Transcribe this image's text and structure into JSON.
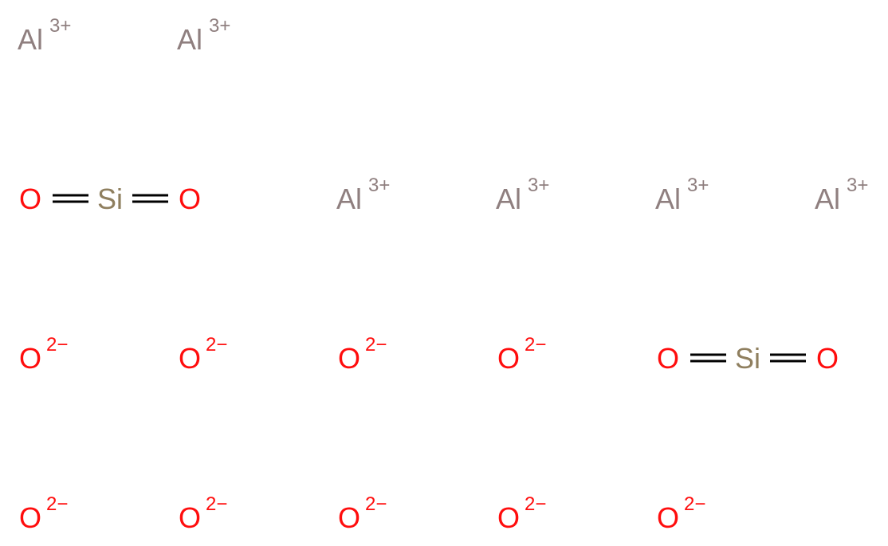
{
  "colors": {
    "aluminium": "#8F7F7F",
    "oxygen": "#FF0D0D",
    "silicon": "#8F7F5F",
    "bond": "#000000"
  },
  "species": {
    "al_cation": {
      "symbol": "Al",
      "charge": "3+"
    },
    "oxide_anion": {
      "symbol": "O",
      "charge": "2−"
    },
    "silica": {
      "silicon": "Si",
      "oxygen": "O",
      "bond_order": 2
    }
  },
  "components": [
    {
      "species": "al_cation",
      "count": 6
    },
    {
      "species": "silica",
      "count": 2
    },
    {
      "species": "oxide_anion",
      "count": 9
    }
  ]
}
